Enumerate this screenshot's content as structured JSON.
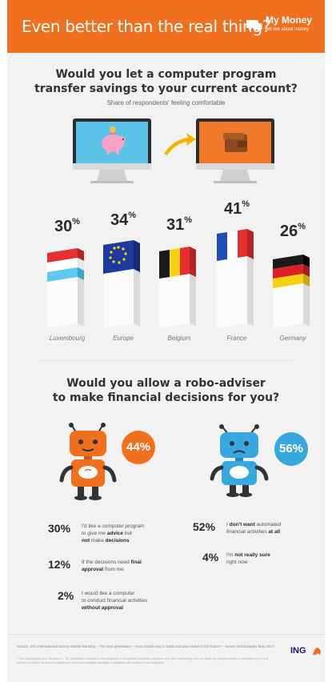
{
  "header": {
    "title": "Even better than the real thing?",
    "brand_name": "My Money",
    "brand_tagline": "tell me about money"
  },
  "section1": {
    "question_line1": "Would you let a computer program",
    "question_line2": "transfer savings to your current account?",
    "subtitle": "Share of respondents' feeling comfortable",
    "countries": [
      {
        "name": "Luxembourg",
        "value": "30",
        "unit": "%",
        "flag": "luxembourg"
      },
      {
        "name": "Europe",
        "value": "34",
        "unit": "%",
        "flag": "eu"
      },
      {
        "name": "Belgium",
        "value": "31",
        "unit": "%",
        "flag": "belgium"
      },
      {
        "name": "France",
        "value": "41",
        "unit": "%",
        "flag": "france"
      },
      {
        "name": "Germany",
        "value": "26",
        "unit": "%",
        "flag": "germany"
      }
    ]
  },
  "section2": {
    "question_line1": "Would you allow a robo-adviser",
    "question_line2": "to make financial decisions for you?",
    "orange_badge": "44%",
    "blue_badge": "56%",
    "left_stats": [
      {
        "value": "30%",
        "line1_a": "I'd like a computer program",
        "line2_a": "to give me ",
        "line2_b": "advice",
        "line2_c": " but",
        "line3_a": "not",
        "line3_b": " make ",
        "line3_c": "decisions"
      },
      {
        "value": "12%",
        "line1_a": "If the decisions need ",
        "line1_b": "final",
        "line2_a": "approval",
        "line2_b": " from me"
      },
      {
        "value": "2%",
        "line1_a": "I would like a computer",
        "line2_a": "to conduct financial activities",
        "line3_a": "without approval"
      }
    ],
    "right_stats": [
      {
        "value": "52%",
        "line1_a": "I ",
        "line1_b": "don't want",
        "line1_c": " automated",
        "line2_a": "financial activities ",
        "line2_b": "at all"
      },
      {
        "value": "4%",
        "line1_a": "I'm ",
        "line1_b": "not really sure",
        "line2_a": "right now"
      }
    ]
  },
  "footer": {
    "source": "Source: ING International Survey Mobile Banking – The next generation – How should way to bank and pay evolve in the future? – Newer technologies May 2017",
    "disclaimer": "© ING Luxembourg 2017 Disclaimer – The information contained in this infographic is for general information purposes only. ING Luxembourg does not make any representations or warranties of any kind, express or implied, about the completeness, accuracy, reliability, suitability or availability with respect to this infographic.",
    "logo": "ING"
  },
  "colors": {
    "orange": "#f07020",
    "blue": "#39a8de",
    "background": "#f2f2f2",
    "navy": "#1a1a6e"
  },
  "icons": [
    "chat-bubble-icon",
    "piggy-bank-icon",
    "arrow-icon",
    "wallet-icon",
    "lion-icon"
  ]
}
